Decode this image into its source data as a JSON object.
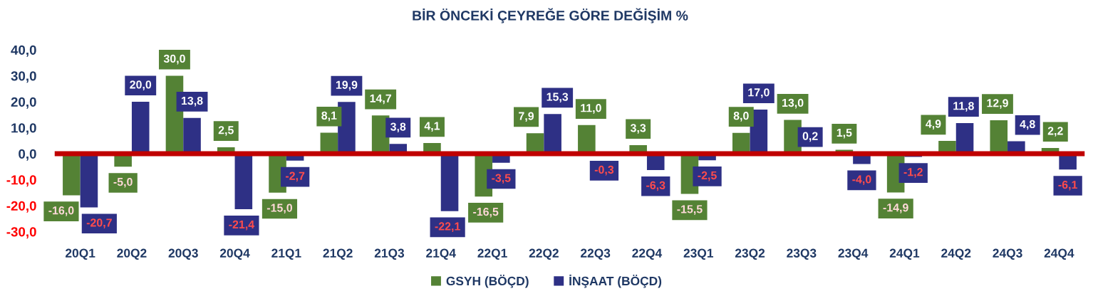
{
  "chart_data": {
    "type": "bar",
    "title": "BİR ÖNCEKİ ÇEYREĞE GÖRE DEĞİŞİM %",
    "categories": [
      "20Q1",
      "20Q2",
      "20Q3",
      "20Q4",
      "21Q1",
      "21Q2",
      "21Q3",
      "21Q4",
      "22Q1",
      "22Q2",
      "22Q3",
      "22Q4",
      "23Q1",
      "23Q2",
      "23Q3",
      "23Q4",
      "24Q1",
      "24Q2",
      "24Q3",
      "24Q4"
    ],
    "series": [
      {
        "name": "GSYH (BÖÇD)",
        "color": "#548235",
        "values": [
          -16.0,
          -5.0,
          30.0,
          2.5,
          -15.0,
          8.1,
          14.7,
          4.1,
          -16.5,
          7.9,
          11.0,
          3.3,
          -15.5,
          8.0,
          13.0,
          1.5,
          -14.9,
          4.9,
          12.9,
          2.2
        ],
        "value_labels": [
          "-16,0",
          "-5,0",
          "30,0",
          "2,5",
          "-15,0",
          "8,1",
          "14,7",
          "4,1",
          "-16,5",
          "7,9",
          "11,0",
          "3,3",
          "-15,5",
          "8,0",
          "13,0",
          "1,5",
          "-14,9",
          "4,9",
          "12,9",
          "2,2"
        ]
      },
      {
        "name": "İNŞAAT (BÖÇD)",
        "color": "#2e3085",
        "values": [
          -20.7,
          20.0,
          13.8,
          -21.4,
          -2.7,
          19.9,
          3.8,
          -22.1,
          -3.5,
          15.3,
          -0.3,
          -6.3,
          -2.5,
          17.0,
          0.2,
          -4.0,
          -1.2,
          11.8,
          4.8,
          -6.1
        ],
        "value_labels": [
          "-20,7",
          "20,0",
          "13,8",
          "-21,4",
          "-2,7",
          "19,9",
          "3,8",
          "-22,1",
          "-3,5",
          "15,3",
          "-0,3",
          "-6,3",
          "-2,5",
          "17,0",
          "0,2",
          "-4,0",
          "-1,2",
          "11,8",
          "4,8",
          "-6,1"
        ]
      }
    ],
    "ylim": [
      -30,
      40
    ],
    "yticks": [
      {
        "value": -30,
        "label": "-30,0"
      },
      {
        "value": -20,
        "label": "-20,0"
      },
      {
        "value": -10,
        "label": "-10,0"
      },
      {
        "value": 0,
        "label": "0,0"
      },
      {
        "value": 10,
        "label": "10,0"
      },
      {
        "value": 20,
        "label": "20,0"
      },
      {
        "value": 30,
        "label": "30,0"
      },
      {
        "value": 40,
        "label": "40,0"
      }
    ],
    "ref_lines": [
      {
        "axis": "y",
        "value": 0,
        "color": "#c00000"
      }
    ],
    "grid": false,
    "legend": "bottom"
  }
}
